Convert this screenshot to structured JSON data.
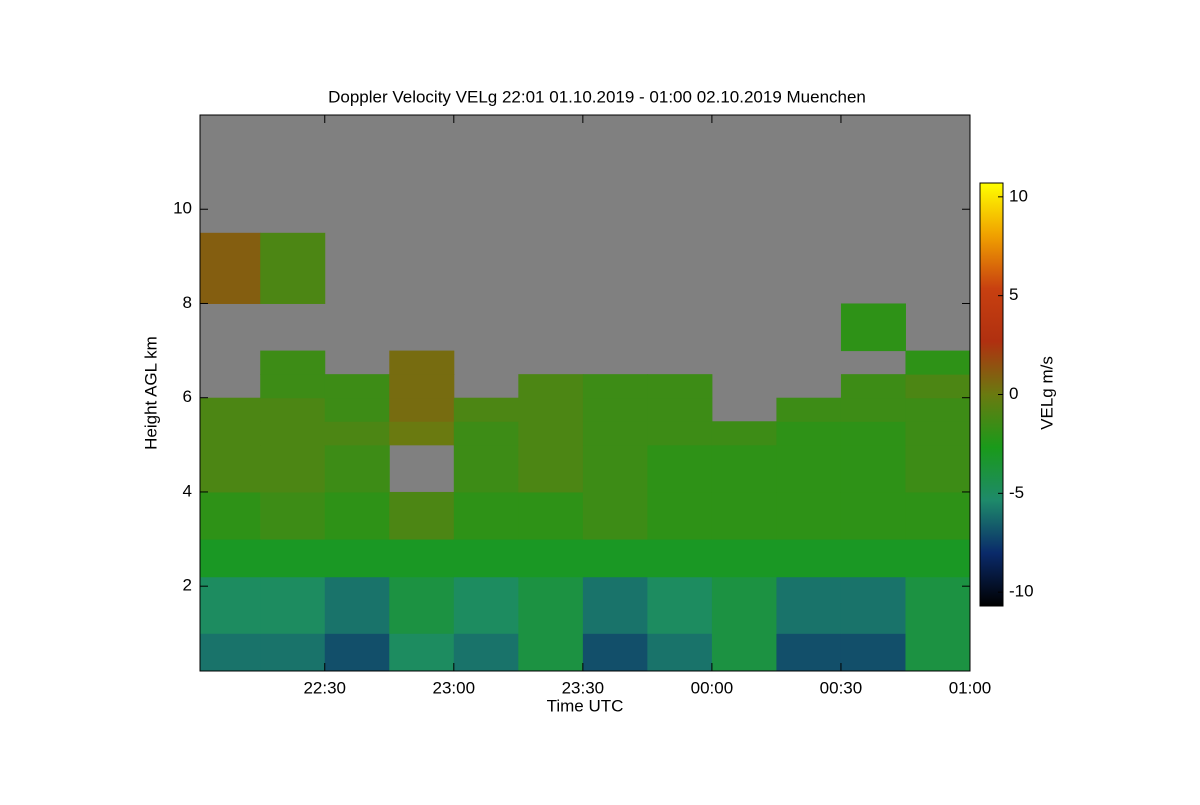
{
  "chart_data": {
    "type": "heatmap",
    "title": "Doppler Velocity VELg   22:01 01.10.2019 - 01:00 02.10.2019 Muenchen",
    "x_label": "Time UTC",
    "y_label": "Height AGL km",
    "colorbar_label": "VELg m/s",
    "xlim": [
      "22:01",
      "01:00"
    ],
    "xticks": [
      "22:30",
      "23:00",
      "23:30",
      "00:00",
      "00:30",
      "01:00"
    ],
    "ylim": [
      0.2,
      12
    ],
    "yticks": [
      2,
      4,
      6,
      8,
      10
    ],
    "zlim": [
      -10.7,
      10.7
    ],
    "zticks": [
      -10,
      -5,
      0,
      5,
      10
    ],
    "colormap": [
      "#000000",
      "#0a2a6a",
      "#1e8a6a",
      "#1a9a1a",
      "#6a7a10",
      "#b03010",
      "#c84010",
      "#f0a000",
      "#ffff00"
    ],
    "nodata_color": "#808080",
    "x": [
      "22:01",
      "22:15",
      "22:30",
      "22:45",
      "23:00",
      "23:15",
      "23:30",
      "23:45",
      "00:00",
      "00:15",
      "00:30",
      "00:45",
      "01:00"
    ],
    "y": [
      0.2,
      1,
      2.2,
      3,
      4,
      5,
      5.5,
      6,
      6.5,
      7,
      8,
      9.5,
      12
    ],
    "z": [
      [
        -6,
        -6,
        -7,
        -5,
        -6,
        -4,
        -7,
        -6,
        -4,
        -7,
        -7,
        -4
      ],
      [
        -5,
        -5,
        -6,
        -4,
        -5,
        -4,
        -6,
        -5,
        -4,
        -6,
        -6,
        -4
      ],
      [
        -3,
        -3,
        -3,
        -3,
        -3,
        -3,
        -3,
        -3,
        -3,
        -3,
        -3,
        -3
      ],
      [
        -2,
        -1.5,
        -2,
        -1,
        -2,
        -2,
        -1.5,
        -2,
        -2,
        -2,
        -2,
        -2
      ],
      [
        -1,
        -1,
        -1.5,
        null,
        -1.5,
        -1,
        -1.5,
        -2,
        -2,
        -2,
        -2,
        -1.5
      ],
      [
        -1,
        -1,
        -1,
        0,
        -1.5,
        -1,
        -1.5,
        -1.5,
        -1.5,
        -2,
        -2,
        -1.5
      ],
      [
        -1,
        -1,
        -1.5,
        0.5,
        -1,
        -1,
        -1.5,
        -1.5,
        null,
        -1.5,
        -1.5,
        -1.5
      ],
      [
        null,
        -1.5,
        -1.5,
        0.5,
        null,
        -1,
        -1.5,
        -1.5,
        null,
        null,
        -1.5,
        -1
      ],
      [
        null,
        -1.5,
        null,
        0.5,
        null,
        null,
        null,
        null,
        null,
        null,
        null,
        -2
      ],
      [
        null,
        null,
        null,
        null,
        null,
        null,
        null,
        null,
        null,
        null,
        -2,
        null
      ],
      [
        1,
        -1,
        null,
        null,
        null,
        null,
        null,
        null,
        null,
        null,
        null,
        null
      ],
      [
        null,
        null,
        null,
        null,
        null,
        null,
        null,
        null,
        null,
        null,
        null,
        null
      ]
    ]
  }
}
